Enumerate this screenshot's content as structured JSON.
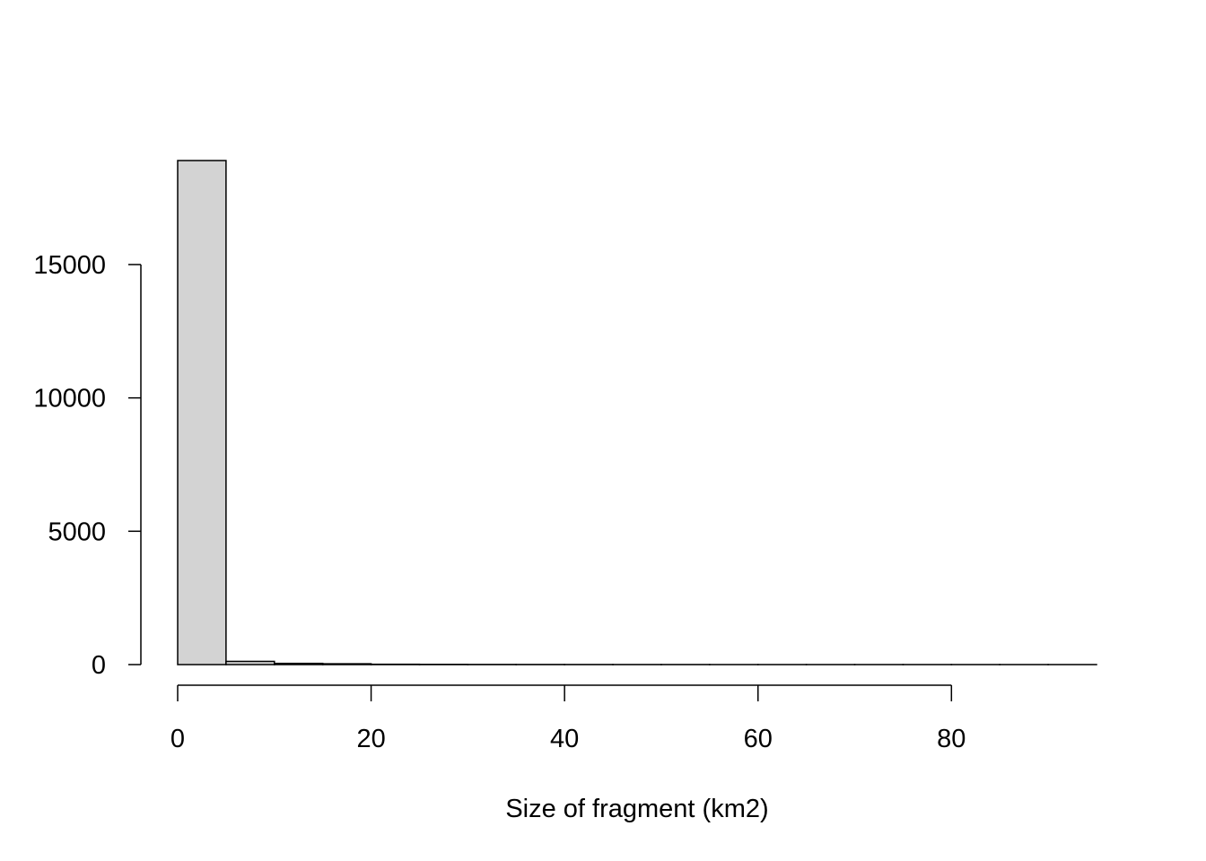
{
  "chart_data": {
    "type": "bar",
    "title": "",
    "xlabel": "Size of fragment (km2)",
    "ylabel": "",
    "bin_edges": [
      0,
      5,
      10,
      15,
      20,
      25,
      30,
      35,
      40,
      45,
      50,
      55,
      60,
      65,
      70,
      75,
      80,
      85,
      90,
      95
    ],
    "values": [
      18900,
      120,
      45,
      30,
      12,
      8,
      5,
      4,
      3,
      2,
      2,
      1,
      1,
      1,
      1,
      1,
      1,
      1,
      1
    ],
    "xlim": [
      0,
      95
    ],
    "ylim": [
      0,
      18900
    ],
    "x_ticks": [
      0,
      20,
      40,
      60,
      80
    ],
    "x_tick_labels": [
      "0",
      "20",
      "40",
      "60",
      "80"
    ],
    "y_ticks": [
      0,
      5000,
      10000,
      15000
    ],
    "y_tick_labels": [
      "0",
      "5000",
      "10000",
      "15000"
    ],
    "grid": false,
    "bar_color": "#d3d3d3",
    "edge_color": "#000000"
  }
}
